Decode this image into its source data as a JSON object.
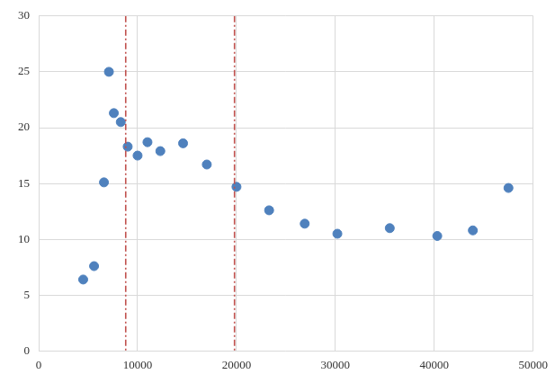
{
  "chart_data": {
    "type": "scatter",
    "x": [
      4500,
      5600,
      6600,
      7100,
      7600,
      8300,
      9000,
      10000,
      11000,
      12300,
      14600,
      17000,
      20000,
      23300,
      26900,
      30200,
      35500,
      40300,
      43900,
      47500
    ],
    "values": [
      6.4,
      7.6,
      15.1,
      25,
      21.3,
      20.5,
      18.3,
      17.5,
      18.7,
      17.9,
      18.6,
      16.7,
      14.7,
      12.6,
      11.4,
      10.5,
      11,
      10.3,
      10.8,
      14.6
    ],
    "color": "#4f81bd",
    "marker": "circle",
    "xlim": [
      0,
      50000
    ],
    "xticks": [
      0,
      10000,
      20000,
      30000,
      40000,
      50000
    ],
    "ylim": [
      0,
      30
    ],
    "yticks": [
      0,
      5,
      10,
      15,
      20,
      25,
      30
    ],
    "grid": true,
    "vertical_lines": {
      "values": [
        8800,
        19800
      ],
      "color": "#c0504d",
      "line_style": "dashdot"
    }
  }
}
